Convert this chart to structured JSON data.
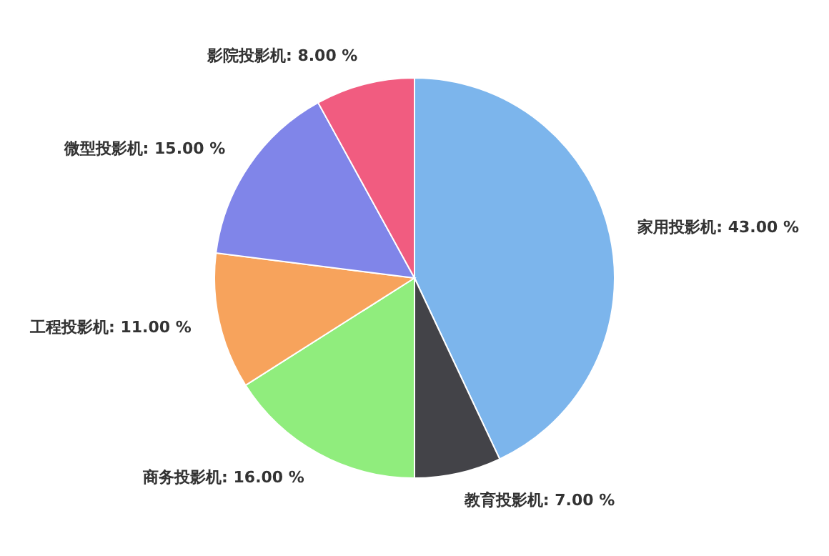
{
  "chart_data": {
    "type": "pie",
    "categories": [
      "家用投影机",
      "教育投影机",
      "商务投影机",
      "工程投影机",
      "微型投影机",
      "影院投影机"
    ],
    "values": [
      43,
      7,
      16,
      11,
      15,
      8
    ],
    "value_labels": [
      "43.00 %",
      "7.00 %",
      "16.00 %",
      "11.00 %",
      "15.00 %",
      "8.00 %"
    ],
    "colors": [
      "#7cb5ec",
      "#434348",
      "#90ed7d",
      "#f7a35c",
      "#8085e9",
      "#f15c80"
    ]
  }
}
